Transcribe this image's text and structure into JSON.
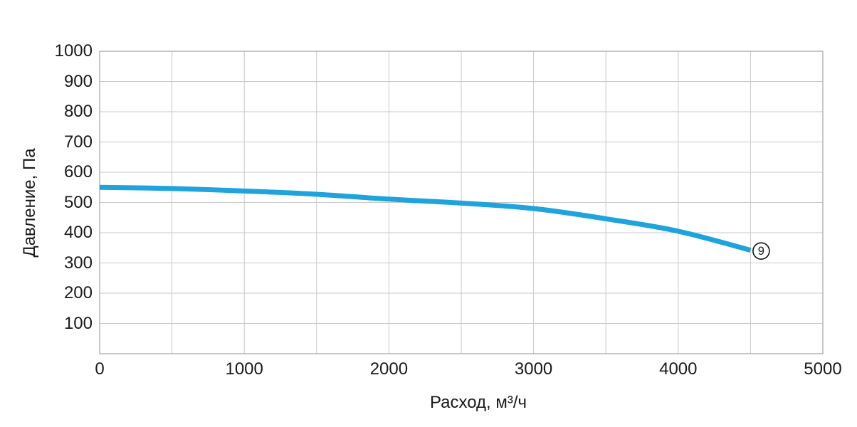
{
  "chart_data": {
    "type": "line",
    "title": "",
    "xlabel": "Расход, м³/ч",
    "ylabel": "Давление, Па",
    "x": [
      0,
      500,
      1000,
      1500,
      2000,
      2500,
      3000,
      3500,
      4000,
      4500
    ],
    "series": [
      {
        "name": "9",
        "end_label": "9",
        "color": "#1ea3dc",
        "values": [
          550,
          546,
          538,
          527,
          511,
          498,
          480,
          446,
          405,
          342
        ]
      }
    ],
    "xlim": [
      0,
      5000
    ],
    "ylim": [
      0,
      1000
    ],
    "x_tick_values": [
      0,
      1000,
      2000,
      3000,
      4000,
      5000
    ],
    "x_tick_labels": [
      "0",
      "1000",
      "2000",
      "3000",
      "4000",
      "5000"
    ],
    "y_tick_values": [
      100,
      200,
      300,
      400,
      500,
      600,
      700,
      800,
      900,
      1000
    ],
    "y_tick_labels": [
      "100",
      "200",
      "300",
      "400",
      "500",
      "600",
      "700",
      "800",
      "900",
      "1000"
    ],
    "x_grid_step": 500,
    "y_grid_step": 100,
    "grid": "on",
    "legend": "none",
    "colors": {
      "curve": "#1ea3dc",
      "grid": "#c9c9c9",
      "frame": "#a3a3a3",
      "text": "#1a1a1a",
      "marker_stroke": "#111111",
      "marker_fill": "#ffffff"
    }
  }
}
